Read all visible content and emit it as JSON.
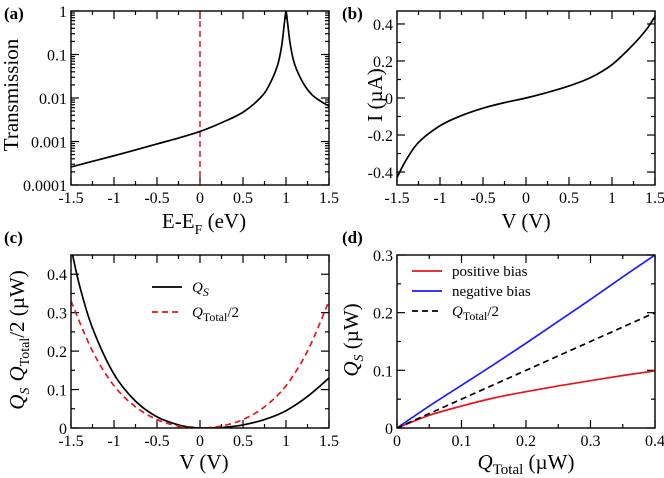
{
  "colors": {
    "black": "#000000",
    "red": "#e8141b",
    "blue": "#1a1aff"
  },
  "chart_data": [
    {
      "id": "a",
      "panel_label": "(a)",
      "type": "line",
      "xlabel": "E-E",
      "xlabel_sub": "F",
      "xlabel_after": " (eV)",
      "ylabel": "Transmission",
      "xlim": [
        -1.5,
        1.5
      ],
      "ylim": [
        0.0001,
        1
      ],
      "yscale": "log",
      "xticks": [
        -1.5,
        -1,
        -0.5,
        0,
        0.5,
        1,
        1.5
      ],
      "xtick_labels": [
        "-1.5",
        "-1",
        "-0.5",
        "0",
        "0.5",
        "1",
        "1.5"
      ],
      "yticks": [
        0.0001,
        0.001,
        0.01,
        0.1,
        1
      ],
      "ytick_labels": [
        "0.0001",
        "0.001",
        "0.01",
        "0.1",
        "1"
      ],
      "series": [
        {
          "name": "Transmission",
          "color": "#000000",
          "style": "solid",
          "x": [
            -1.5,
            -1.25,
            -1.0,
            -0.75,
            -0.5,
            -0.25,
            0.0,
            0.25,
            0.5,
            0.7,
            0.8,
            0.9,
            0.95,
            0.98,
            1.0,
            1.02,
            1.05,
            1.1,
            1.2,
            1.3,
            1.4,
            1.5
          ],
          "y": [
            0.00026,
            0.00035,
            0.00047,
            0.00064,
            0.00088,
            0.0012,
            0.0017,
            0.0027,
            0.0047,
            0.01,
            0.019,
            0.055,
            0.16,
            0.5,
            0.95,
            0.5,
            0.17,
            0.06,
            0.022,
            0.012,
            0.0085,
            0.0065
          ]
        }
      ],
      "vlines": [
        {
          "x": 0,
          "color": "#e8141b",
          "style": "dashed"
        }
      ]
    },
    {
      "id": "b",
      "panel_label": "(b)",
      "type": "line",
      "xlabel": "V (V)",
      "ylabel": "I (µA)",
      "xlim": [
        -1.5,
        1.5
      ],
      "ylim": [
        -0.47,
        0.47
      ],
      "xticks": [
        -1.5,
        -1,
        -0.5,
        0,
        0.5,
        1,
        1.5
      ],
      "xtick_labels": [
        "-1.5",
        "-1",
        "-0.5",
        "0",
        "0.5",
        "1",
        "1.5"
      ],
      "yticks": [
        -0.4,
        -0.2,
        0,
        0.2,
        0.4
      ],
      "ytick_labels": [
        "-0.4",
        "-0.2",
        "0",
        "0.2",
        "0.4"
      ],
      "series": [
        {
          "name": "I",
          "color": "#000000",
          "style": "solid",
          "x": [
            -1.5,
            -1.4,
            -1.25,
            -1.0,
            -0.75,
            -0.5,
            -0.25,
            0.0,
            0.25,
            0.5,
            0.75,
            1.0,
            1.25,
            1.4,
            1.5
          ],
          "y": [
            -0.43,
            -0.34,
            -0.24,
            -0.15,
            -0.095,
            -0.055,
            -0.025,
            0.0,
            0.03,
            0.065,
            0.11,
            0.18,
            0.29,
            0.37,
            0.44
          ]
        }
      ]
    },
    {
      "id": "c",
      "panel_label": "(c)",
      "type": "line",
      "xlabel": "V (V)",
      "ylabel": "Q_S  Q_Total/2 (µW)",
      "ylabel_parts": {
        "q": "Q",
        "s": "S",
        "q2": "Q",
        "total": "Total",
        "tail": "/2 (µW)"
      },
      "xlim": [
        -1.5,
        1.5
      ],
      "ylim": [
        0,
        0.45
      ],
      "xticks": [
        -1.5,
        -1,
        -0.5,
        0,
        0.5,
        1,
        1.5
      ],
      "xtick_labels": [
        "-1.5",
        "-1",
        "-0.5",
        "0",
        "0.5",
        "1",
        "1.5"
      ],
      "yticks": [
        0,
        0.1,
        0.2,
        0.3,
        0.4
      ],
      "ytick_labels": [
        "0",
        "0.1",
        "0.2",
        "0.3",
        "0.4"
      ],
      "legend": [
        {
          "label": "Q",
          "sub": "S",
          "tail": "",
          "color": "#000000",
          "style": "solid"
        },
        {
          "label": "Q",
          "sub": "Total",
          "tail": "/2",
          "color": "#e8141b",
          "style": "dashed"
        }
      ],
      "series": [
        {
          "name": "Q_S",
          "color": "#000000",
          "style": "solid",
          "x": [
            -1.5,
            -1.4,
            -1.25,
            -1.0,
            -0.75,
            -0.5,
            -0.25,
            -0.1,
            0.0,
            0.1,
            0.25,
            0.5,
            0.75,
            1.0,
            1.25,
            1.5
          ],
          "y": [
            0.47,
            0.37,
            0.26,
            0.14,
            0.07,
            0.029,
            0.008,
            0.002,
            0.0,
            0.0,
            0.001,
            0.008,
            0.022,
            0.045,
            0.082,
            0.13
          ]
        },
        {
          "name": "Q_Total/2",
          "color": "#e8141b",
          "style": "dashed",
          "x": [
            -1.5,
            -1.25,
            -1.0,
            -0.75,
            -0.5,
            -0.25,
            0.0,
            0.25,
            0.5,
            0.75,
            1.0,
            1.25,
            1.5
          ],
          "y": [
            0.33,
            0.2,
            0.11,
            0.055,
            0.022,
            0.005,
            0.0,
            0.005,
            0.022,
            0.055,
            0.11,
            0.2,
            0.33
          ]
        }
      ]
    },
    {
      "id": "d",
      "panel_label": "(d)",
      "type": "line",
      "xlabel": "Q_Total (µW)",
      "xlabel_parts": {
        "q": "Q",
        "total": "Total",
        "tail": " (µW)"
      },
      "ylabel": "Q_S (µW)",
      "ylabel_parts": {
        "q": "Q",
        "s": "S",
        "tail": " (µW)"
      },
      "xlim": [
        0,
        0.4
      ],
      "ylim": [
        0,
        0.3
      ],
      "xticks": [
        0,
        0.1,
        0.2,
        0.3,
        0.4
      ],
      "xtick_labels": [
        "0",
        "0.1",
        "0.2",
        "0.3",
        "0.4"
      ],
      "yticks": [
        0,
        0.1,
        0.2,
        0.3
      ],
      "ytick_labels": [
        "0",
        "0.1",
        "0.2",
        "0.3"
      ],
      "legend": [
        {
          "label": "positive bias",
          "sub": "",
          "tail": "",
          "color": "#e8141b",
          "style": "solid"
        },
        {
          "label": "negative bias",
          "sub": "",
          "tail": "",
          "color": "#1a1aff",
          "style": "solid"
        },
        {
          "label": "Q",
          "sub": "Total",
          "tail": "/2",
          "color": "#000000",
          "style": "dashed"
        }
      ],
      "series": [
        {
          "name": "positive bias",
          "color": "#e8141b",
          "style": "solid",
          "x": [
            0,
            0.05,
            0.1,
            0.15,
            0.2,
            0.25,
            0.3,
            0.35,
            0.4
          ],
          "y": [
            0,
            0.022,
            0.038,
            0.052,
            0.063,
            0.073,
            0.082,
            0.091,
            0.099
          ]
        },
        {
          "name": "negative bias",
          "color": "#1a1aff",
          "style": "solid",
          "x": [
            0,
            0.05,
            0.1,
            0.15,
            0.2,
            0.25,
            0.3,
            0.35,
            0.4
          ],
          "y": [
            0,
            0.038,
            0.074,
            0.11,
            0.147,
            0.185,
            0.223,
            0.262,
            0.3
          ]
        },
        {
          "name": "Q_Total/2",
          "color": "#000000",
          "style": "dashed",
          "x": [
            0,
            0.4
          ],
          "y": [
            0,
            0.2
          ]
        }
      ]
    }
  ]
}
